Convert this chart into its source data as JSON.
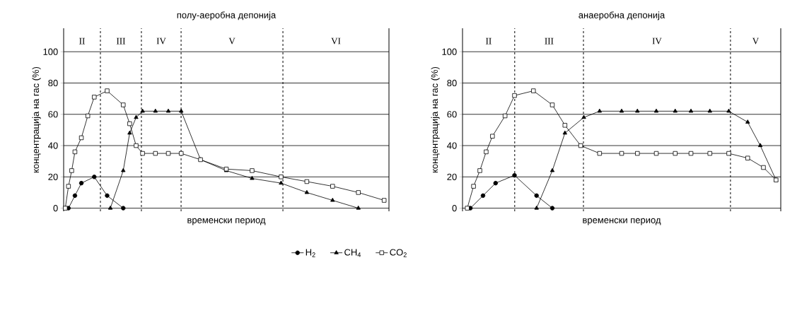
{
  "chart_data": [
    {
      "type": "line",
      "title": "полу-аеробна депонија",
      "xlabel": "временски период",
      "ylabel": "концентрација на гас (%)",
      "categories": [
        null,
        null,
        null,
        null,
        null,
        null,
        null,
        null,
        null,
        null,
        null,
        null,
        null,
        null,
        null,
        null,
        null,
        null,
        null,
        null,
        null,
        null,
        null,
        null,
        null,
        null,
        null,
        null,
        null,
        null,
        null,
        null,
        null,
        null,
        null,
        null,
        null,
        null,
        null,
        null,
        null,
        null,
        null,
        null,
        null,
        null,
        null,
        null,
        null,
        null,
        null,
        null,
        null,
        null,
        null,
        null,
        null,
        null,
        null,
        null,
        null,
        null,
        null,
        null,
        null,
        null,
        null,
        null,
        null,
        null,
        null,
        null,
        null,
        null,
        null,
        null,
        null,
        null,
        null,
        null,
        null,
        null,
        null,
        null,
        null,
        null,
        null,
        null,
        null,
        null,
        null,
        null,
        null,
        null,
        null,
        null,
        null,
        null,
        null,
        null,
        null
      ],
      "ylim": [
        -2,
        115
      ],
      "yticks": [
        0,
        20,
        40,
        60,
        80,
        100
      ],
      "tick_labels": "y",
      "grid": "y",
      "legend": "bottom",
      "series": [
        {
          "name": "H$_{2}$",
          "color": "#000000",
          "marker": "circle",
          "values": [
            null,
            0,
            null,
            8,
            null,
            16,
            null,
            null,
            null,
            20,
            null,
            null,
            null,
            8,
            null,
            null,
            null,
            null,
            0,
            null,
            null,
            null,
            null,
            null,
            null,
            null,
            null,
            null,
            null,
            null,
            null,
            null,
            null,
            null,
            null,
            null,
            null,
            null,
            null,
            null,
            null,
            null,
            null,
            null,
            null,
            null,
            null,
            null,
            null,
            null,
            null,
            null,
            null,
            null,
            null,
            null,
            null,
            null,
            null,
            null,
            null,
            null,
            null,
            null,
            null,
            null,
            null,
            null,
            null,
            null,
            null,
            null,
            null,
            null,
            null,
            null,
            null,
            null,
            null,
            null,
            null,
            null,
            null,
            null,
            null,
            null,
            null,
            null,
            null,
            null,
            null,
            null,
            null,
            null,
            null,
            null,
            null,
            null,
            null,
            null,
            null
          ]
        },
        {
          "name": "CH$_{4}$",
          "color": "#000000",
          "marker": "triangle",
          "values": [
            null,
            null,
            null,
            null,
            null,
            null,
            null,
            null,
            null,
            null,
            null,
            null,
            null,
            null,
            0,
            null,
            null,
            null,
            24,
            null,
            48,
            null,
            58,
            null,
            62,
            null,
            null,
            null,
            62,
            null,
            null,
            null,
            62,
            null,
            null,
            null,
            62,
            null,
            null,
            null,
            null,
            null,
            31,
            null,
            null,
            null,
            null,
            null,
            null,
            null,
            24,
            null,
            null,
            null,
            null,
            null,
            null,
            null,
            19,
            null,
            null,
            null,
            null,
            null,
            null,
            null,
            null,
            16,
            null,
            null,
            null,
            null,
            null,
            null,
            null,
            10,
            null,
            null,
            null,
            null,
            null,
            null,
            null,
            5,
            null,
            null,
            null,
            null,
            null,
            null,
            null,
            0,
            null,
            null,
            null,
            null,
            null,
            null,
            null,
            null,
            null
          ]
        },
        {
          "name": "CO$_{2}$",
          "color": "#000000",
          "marker": "square",
          "values": [
            0,
            14,
            24,
            36,
            null,
            45,
            null,
            59,
            null,
            71,
            null,
            null,
            null,
            75,
            null,
            null,
            null,
            null,
            66,
            null,
            54,
            null,
            40,
            null,
            35,
            null,
            null,
            null,
            35,
            null,
            null,
            null,
            35,
            null,
            null,
            null,
            35,
            null,
            null,
            null,
            null,
            null,
            31,
            null,
            null,
            null,
            null,
            null,
            null,
            null,
            25,
            null,
            null,
            null,
            null,
            null,
            null,
            null,
            24,
            null,
            null,
            null,
            null,
            null,
            null,
            null,
            null,
            20,
            null,
            null,
            null,
            null,
            null,
            null,
            null,
            17,
            null,
            null,
            null,
            null,
            null,
            null,
            null,
            14,
            null,
            null,
            null,
            null,
            null,
            null,
            null,
            10,
            null,
            null,
            null,
            null,
            null,
            null,
            null,
            5,
            null
          ]
        }
      ],
      "annotations": [
        "II",
        "III",
        "IV",
        "V",
        "VI"
      ]
    },
    {
      "type": "line",
      "title": "анаеробна депонија",
      "xlabel": "временски период",
      "ylabel": "концентрација на гас (%)",
      "categories": [
        null,
        null,
        null,
        null,
        null,
        null,
        null,
        null,
        null,
        null,
        null,
        null,
        null,
        null,
        null,
        null,
        null,
        null,
        null,
        null,
        null,
        null,
        null,
        null,
        null,
        null,
        null,
        null,
        null,
        null,
        null,
        null,
        null,
        null,
        null,
        null,
        null,
        null,
        null,
        null,
        null,
        null,
        null,
        null,
        null,
        null,
        null,
        null,
        null,
        null,
        null,
        null,
        null,
        null,
        null,
        null,
        null,
        null,
        null,
        null,
        null,
        null,
        null,
        null,
        null,
        null,
        null,
        null,
        null,
        null,
        null,
        null,
        null,
        null,
        null,
        null,
        null,
        null,
        null,
        null,
        null,
        null,
        null,
        null,
        null,
        null,
        null,
        null,
        null,
        null,
        null,
        null,
        null,
        null,
        null,
        null,
        null,
        null,
        null,
        null,
        null
      ],
      "ylim": [
        -2,
        115
      ],
      "yticks": [
        0,
        20,
        40,
        60,
        80,
        100
      ],
      "tick_labels": "y",
      "grid": "y",
      "series": [
        {
          "color": "#000000",
          "marker": "circle",
          "values": [
            null,
            null,
            0,
            null,
            null,
            null,
            8,
            null,
            null,
            null,
            16,
            null,
            null,
            null,
            null,
            null,
            21,
            null,
            null,
            null,
            null,
            null,
            null,
            8,
            null,
            null,
            null,
            null,
            0,
            null,
            null,
            null,
            null,
            null,
            null,
            null,
            null,
            null,
            null,
            null,
            null,
            null,
            null,
            null,
            null,
            null,
            null,
            null,
            null,
            null,
            null,
            null,
            null,
            null,
            null,
            null,
            null,
            null,
            null,
            null,
            null,
            null,
            null,
            null,
            null,
            null,
            null,
            null,
            null,
            null,
            null,
            null,
            null,
            null,
            null,
            null,
            null,
            null,
            null,
            null,
            null,
            null,
            null,
            null,
            null,
            null,
            null,
            null,
            null,
            null,
            null,
            null,
            null,
            null,
            null,
            null,
            null,
            null,
            null,
            null,
            null
          ]
        },
        {
          "color": "#000000",
          "marker": "triangle",
          "values": [
            null,
            null,
            null,
            null,
            null,
            null,
            null,
            null,
            null,
            null,
            null,
            null,
            null,
            null,
            null,
            null,
            null,
            null,
            null,
            null,
            null,
            null,
            null,
            0,
            null,
            null,
            null,
            null,
            24,
            null,
            null,
            null,
            48,
            null,
            null,
            null,
            null,
            null,
            58,
            null,
            null,
            null,
            null,
            62,
            null,
            null,
            null,
            null,
            null,
            null,
            62,
            null,
            null,
            null,
            null,
            62,
            null,
            null,
            null,
            null,
            null,
            62,
            null,
            null,
            null,
            null,
            null,
            62,
            null,
            null,
            null,
            null,
            62,
            null,
            null,
            null,
            null,
            null,
            62,
            null,
            null,
            null,
            null,
            null,
            62,
            null,
            null,
            null,
            null,
            null,
            55,
            null,
            null,
            null,
            40,
            null,
            null,
            null,
            null,
            18,
            null
          ]
        },
        {
          "color": "#000000",
          "marker": "square",
          "values": [
            null,
            0,
            null,
            14,
            null,
            24,
            null,
            36,
            null,
            46,
            null,
            null,
            null,
            59,
            null,
            null,
            72,
            null,
            null,
            null,
            null,
            null,
            75,
            null,
            null,
            null,
            null,
            null,
            66,
            null,
            null,
            null,
            53,
            null,
            null,
            null,
            null,
            40,
            null,
            null,
            null,
            null,
            null,
            35,
            null,
            null,
            null,
            null,
            null,
            null,
            35,
            null,
            null,
            null,
            null,
            35,
            null,
            null,
            null,
            null,
            null,
            35,
            null,
            null,
            null,
            null,
            null,
            35,
            null,
            null,
            null,
            null,
            35,
            null,
            null,
            null,
            null,
            null,
            35,
            null,
            null,
            null,
            null,
            null,
            35,
            null,
            null,
            null,
            null,
            null,
            32,
            null,
            null,
            null,
            null,
            26,
            null,
            null,
            null,
            18,
            null
          ]
        }
      ],
      "annotations": [
        "II",
        "III",
        "IV",
        "V"
      ]
    }
  ]
}
